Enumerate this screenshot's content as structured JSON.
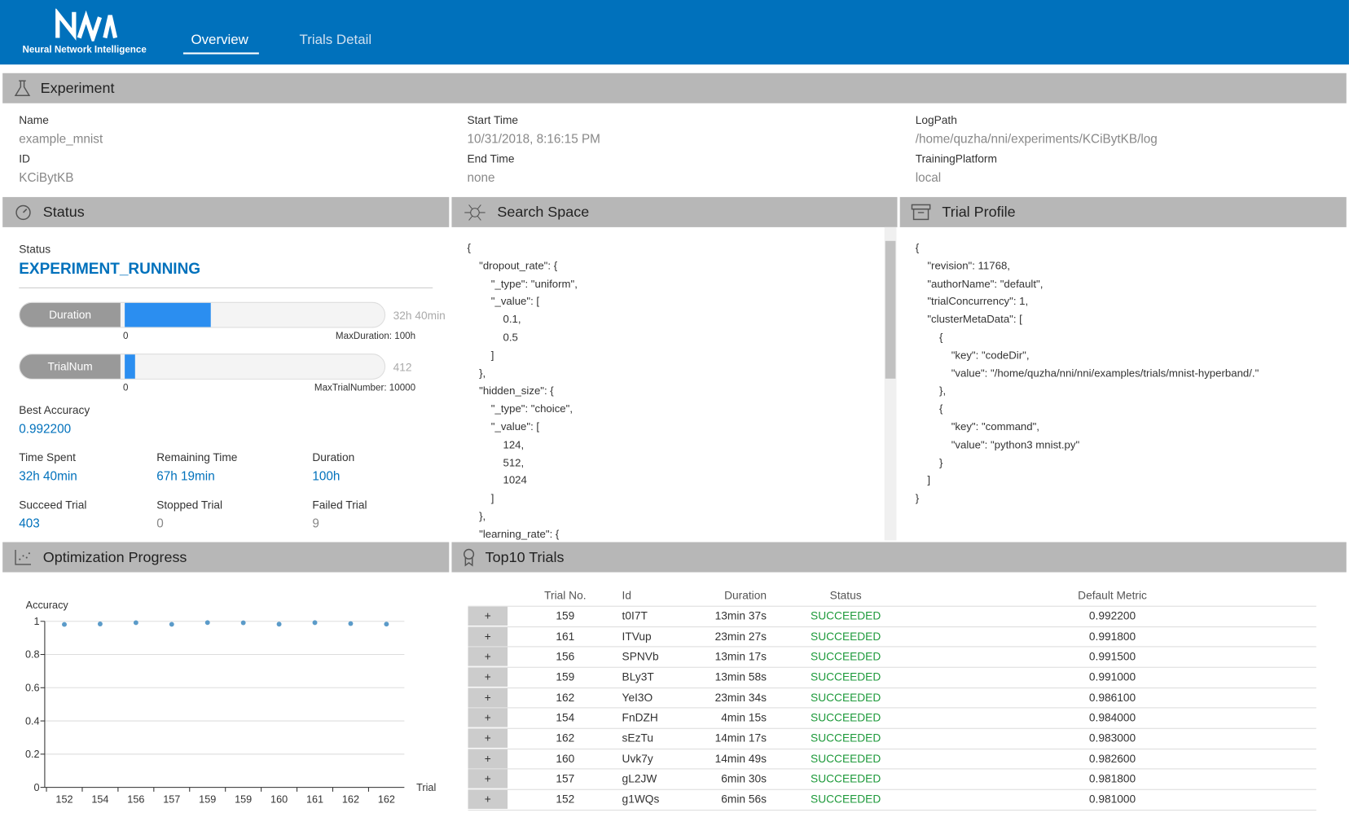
{
  "header": {
    "logo_text": "Neural Network Intelligence",
    "nav": [
      "Overview",
      "Trials Detail"
    ]
  },
  "experiment": {
    "title": "Experiment",
    "fields": [
      {
        "label": "Name",
        "value": "example_mnist"
      },
      {
        "label": "ID",
        "value": "KCiBytKB"
      },
      {
        "label": "Start Time",
        "value": "10/31/2018, 8:16:15 PM"
      },
      {
        "label": "End Time",
        "value": "none"
      },
      {
        "label": "LogPath",
        "value": "/home/quzha/nni/experiments/KCiBytKB/log"
      },
      {
        "label": "TrainingPlatform",
        "value": "local"
      }
    ]
  },
  "status": {
    "title": "Status",
    "label": "Status",
    "value": "EXPERIMENT_RUNNING",
    "progress": [
      {
        "label": "Duration",
        "value": "32h 40min",
        "min": "0",
        "max": "MaxDuration: 100h",
        "fill": 0.33
      },
      {
        "label": "TrialNum",
        "value": "412",
        "min": "0",
        "max": "MaxTrialNumber: 10000",
        "fill": 0.041
      }
    ],
    "best": {
      "label": "Best Accuracy",
      "value": "0.992200"
    },
    "stats": [
      {
        "label": "Time Spent",
        "value": "32h 40min",
        "highlight": true
      },
      {
        "label": "Remaining Time",
        "value": "67h 19min",
        "highlight": true
      },
      {
        "label": "Duration",
        "value": "100h",
        "highlight": true
      },
      {
        "label": "Succeed Trial",
        "value": "403",
        "highlight": true
      },
      {
        "label": "Stopped Trial",
        "value": "0",
        "highlight": false
      },
      {
        "label": "Failed Trial",
        "value": "9",
        "highlight": false
      }
    ]
  },
  "search_space": {
    "title": "Search Space",
    "lines": [
      "{",
      "    \"dropout_rate\": {",
      "        \"_type\": \"uniform\",",
      "        \"_value\": [",
      "            0.1,",
      "            0.5",
      "        ]",
      "    },",
      "    \"hidden_size\": {",
      "        \"_type\": \"choice\",",
      "        \"_value\": [",
      "            124,",
      "            512,",
      "            1024",
      "        ]",
      "    },",
      "    \"learning_rate\": {"
    ]
  },
  "trial_profile": {
    "title": "Trial Profile",
    "lines": [
      "{",
      "    \"revision\": 11768,",
      "    \"authorName\": \"default\",",
      "    \"trialConcurrency\": 1,",
      "    \"clusterMetaData\": [",
      "        {",
      "            \"key\": \"codeDir\",",
      "            \"value\": \"/home/quzha/nni/nni/examples/trials/mnist-hyperband/.\"",
      "        },",
      "        {",
      "            \"key\": \"command\",",
      "            \"value\": \"python3 mnist.py\"",
      "        }",
      "    ]",
      "}"
    ]
  },
  "chart_data": {
    "type": "scatter",
    "title": "Optimization Progress",
    "y_label": "Accuracy",
    "x_label": "Trial",
    "categories": [
      "152",
      "154",
      "156",
      "157",
      "159",
      "159",
      "160",
      "161",
      "162",
      "162"
    ],
    "values": [
      0.981,
      0.984,
      0.9915,
      0.9818,
      0.9922,
      0.991,
      0.9826,
      0.9918,
      0.9861,
      0.983
    ],
    "color": "#5b9bc9",
    "ylim": [
      0,
      1
    ],
    "yticks": [
      0,
      0.2,
      0.4,
      0.6,
      0.8,
      1
    ],
    "grid": true
  },
  "top10": {
    "title": "Top10 Trials",
    "expand": "+",
    "columns": [
      "Trial No.",
      "Id",
      "Duration",
      "Status",
      "Default Metric"
    ],
    "rows": [
      [
        "159",
        "t0I7T",
        "13min 37s",
        "SUCCEEDED",
        "0.992200"
      ],
      [
        "161",
        "ITVup",
        "23min 27s",
        "SUCCEEDED",
        "0.991800"
      ],
      [
        "156",
        "SPNVb",
        "13min 17s",
        "SUCCEEDED",
        "0.991500"
      ],
      [
        "159",
        "BLy3T",
        "13min 58s",
        "SUCCEEDED",
        "0.991000"
      ],
      [
        "162",
        "YeI3O",
        "23min 34s",
        "SUCCEEDED",
        "0.986100"
      ],
      [
        "154",
        "FnDZH",
        "4min 15s",
        "SUCCEEDED",
        "0.984000"
      ],
      [
        "162",
        "sEzTu",
        "14min 17s",
        "SUCCEEDED",
        "0.983000"
      ],
      [
        "160",
        "Uvk7y",
        "14min 49s",
        "SUCCEEDED",
        "0.982600"
      ],
      [
        "157",
        "gL2JW",
        "6min 30s",
        "SUCCEEDED",
        "0.981800"
      ],
      [
        "152",
        "g1WQs",
        "6min 56s",
        "SUCCEEDED",
        "0.981000"
      ]
    ]
  }
}
